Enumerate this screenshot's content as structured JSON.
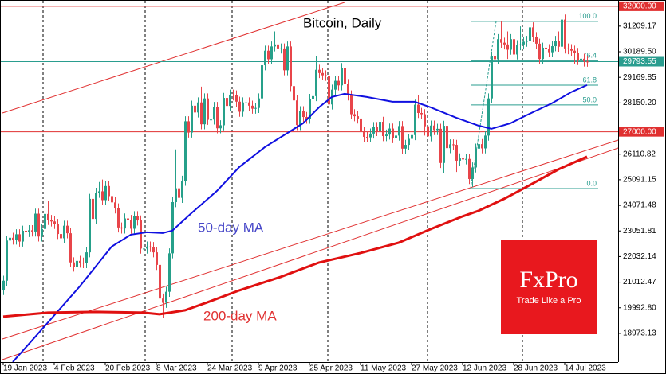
{
  "chart_data": {
    "type": "candlestick",
    "title": "Bitcoin, Daily",
    "x": [
      "2023-01-19",
      "2023-01-20",
      "2023-01-21",
      "2023-01-22",
      "2023-01-23",
      "2023-01-24",
      "2023-01-25",
      "2023-01-26",
      "2023-01-27",
      "2023-01-28",
      "2023-01-29",
      "2023-01-30",
      "2023-01-31",
      "2023-02-01",
      "2023-02-02",
      "2023-02-03",
      "2023-02-04",
      "2023-02-05",
      "2023-02-06",
      "2023-02-07",
      "2023-02-08",
      "2023-02-09",
      "2023-02-10",
      "2023-02-11",
      "2023-02-12",
      "2023-02-13",
      "2023-02-14",
      "2023-02-15",
      "2023-02-16",
      "2023-02-17",
      "2023-02-18",
      "2023-02-19",
      "2023-02-20",
      "2023-02-21",
      "2023-02-22",
      "2023-02-23",
      "2023-02-24",
      "2023-02-25",
      "2023-02-26",
      "2023-02-27",
      "2023-02-28",
      "2023-03-01",
      "2023-03-02",
      "2023-03-03",
      "2023-03-04",
      "2023-03-05",
      "2023-03-06",
      "2023-03-07",
      "2023-03-08",
      "2023-03-09",
      "2023-03-10",
      "2023-03-11",
      "2023-03-12",
      "2023-03-13",
      "2023-03-14",
      "2023-03-15",
      "2023-03-16",
      "2023-03-17",
      "2023-03-18",
      "2023-03-19",
      "2023-03-20",
      "2023-03-21",
      "2023-03-22",
      "2023-03-23",
      "2023-03-24",
      "2023-03-25",
      "2023-03-26",
      "2023-03-27",
      "2023-03-28",
      "2023-03-29",
      "2023-03-30",
      "2023-03-31",
      "2023-04-01",
      "2023-04-02",
      "2023-04-03",
      "2023-04-04",
      "2023-04-05",
      "2023-04-06",
      "2023-04-07",
      "2023-04-08",
      "2023-04-09",
      "2023-04-10",
      "2023-04-11",
      "2023-04-12",
      "2023-04-13",
      "2023-04-14",
      "2023-04-15",
      "2023-04-16",
      "2023-04-17",
      "2023-04-18",
      "2023-04-19",
      "2023-04-20",
      "2023-04-21",
      "2023-04-22",
      "2023-04-23",
      "2023-04-24",
      "2023-04-25",
      "2023-04-26",
      "2023-04-27",
      "2023-04-28",
      "2023-04-29",
      "2023-04-30",
      "2023-05-01",
      "2023-05-02",
      "2023-05-03",
      "2023-05-04",
      "2023-05-05",
      "2023-05-06",
      "2023-05-07",
      "2023-05-08",
      "2023-05-09",
      "2023-05-10",
      "2023-05-11",
      "2023-05-12",
      "2023-05-13",
      "2023-05-14",
      "2023-05-15",
      "2023-05-16",
      "2023-05-17",
      "2023-05-18",
      "2023-05-19",
      "2023-05-20",
      "2023-05-21",
      "2023-05-22",
      "2023-05-23",
      "2023-05-24",
      "2023-05-25",
      "2023-05-26",
      "2023-05-27",
      "2023-05-28",
      "2023-05-29",
      "2023-05-30",
      "2023-05-31",
      "2023-06-01",
      "2023-06-02",
      "2023-06-03",
      "2023-06-04",
      "2023-06-05",
      "2023-06-06",
      "2023-06-07",
      "2023-06-08",
      "2023-06-09",
      "2023-06-10",
      "2023-06-11",
      "2023-06-12",
      "2023-06-13",
      "2023-06-14",
      "2023-06-15",
      "2023-06-16",
      "2023-06-17",
      "2023-06-18",
      "2023-06-19",
      "2023-06-20",
      "2023-06-21",
      "2023-06-22",
      "2023-06-23",
      "2023-06-24",
      "2023-06-25",
      "2023-06-26",
      "2023-06-27",
      "2023-06-28",
      "2023-06-29",
      "2023-06-30",
      "2023-07-01",
      "2023-07-02",
      "2023-07-03",
      "2023-07-04",
      "2023-07-05",
      "2023-07-06",
      "2023-07-07",
      "2023-07-08",
      "2023-07-09",
      "2023-07-10",
      "2023-07-11",
      "2023-07-12",
      "2023-07-13",
      "2023-07-14",
      "2023-07-15",
      "2023-07-16",
      "2023-07-17",
      "2023-07-18",
      "2023-07-19",
      "2023-07-20",
      "2023-07-21"
    ],
    "open": [
      20700,
      21070,
      22670,
      22780,
      22710,
      22920,
      22630,
      23060,
      23010,
      23080,
      23030,
      23740,
      22830,
      23130,
      23730,
      23490,
      23430,
      23330,
      22930,
      22760,
      23260,
      22960,
      21800,
      21630,
      21860,
      21790,
      21770,
      22200,
      24330,
      23530,
      24570,
      24630,
      24280,
      24840,
      24440,
      24190,
      23950,
      23190,
      23150,
      23550,
      23490,
      23140,
      23640,
      23470,
      22350,
      22350,
      22430,
      22410,
      22200,
      21700,
      20360,
      20190,
      20630,
      22160,
      24200,
      24750,
      24370,
      25050,
      27420,
      26970,
      28040,
      27770,
      28170,
      27300,
      28330,
      27480,
      27490,
      27990,
      27140,
      27260,
      28350,
      28030,
      28480,
      28450,
      28200,
      27800,
      28170,
      28170,
      28040,
      27920,
      27950,
      28330,
      29650,
      30230,
      29890,
      30400,
      30480,
      30320,
      30320,
      29450,
      30400,
      28820,
      28250,
      27270,
      27820,
      27590,
      27520,
      28310,
      28420,
      29470,
      29340,
      29250,
      29230,
      28090,
      28680,
      29030,
      28850,
      29540,
      28900,
      28450,
      27700,
      27620,
      27530,
      26990,
      26800,
      26780,
      26930,
      27190,
      27030,
      27400,
      26830,
      26890,
      27130,
      26750,
      26850,
      27230,
      26330,
      26480,
      26720,
      26870,
      28080,
      27750,
      27700,
      27220,
      26820,
      27250,
      27070,
      27120,
      25760,
      27240,
      26350,
      26500,
      26480,
      25850,
      25940,
      25900,
      25920,
      25120,
      25580,
      26330,
      26510,
      26340,
      26850,
      28330,
      30000,
      29890,
      30690,
      30550,
      30480,
      30270,
      30690,
      30080,
      30450,
      30480,
      30590,
      30620,
      31160,
      30770,
      30510,
      29900,
      30350,
      30290,
      30170,
      30410,
      30620,
      30390,
      31470,
      30320,
      30290,
      30230,
      30140,
      29860,
      29910,
      29800
    ],
    "high": [
      21270,
      22870,
      22980,
      22980,
      23120,
      23120,
      23260,
      23260,
      23280,
      23280,
      23940,
      23940,
      23330,
      23930,
      24230,
      23690,
      23630,
      23530,
      23130,
      23460,
      23460,
      23160,
      22000,
      22060,
      22060,
      21990,
      22400,
      24530,
      25250,
      24770,
      25000,
      25100,
      25040,
      25040,
      25200,
      24390,
      24150,
      23390,
      23750,
      23750,
      23690,
      23840,
      23840,
      23670,
      22550,
      22630,
      22630,
      22610,
      22400,
      21900,
      20560,
      20830,
      22360,
      24400,
      26300,
      24950,
      25250,
      27620,
      27620,
      28240,
      28470,
      28370,
      28800,
      28530,
      28530,
      27690,
      28190,
      28190,
      27460,
      28550,
      28550,
      28680,
      28680,
      28650,
      28400,
      28370,
      28370,
      28370,
      28240,
      28150,
      28530,
      29850,
      30430,
      30430,
      30600,
      31000,
      30680,
      30520,
      30520,
      30600,
      30600,
      29020,
      28450,
      28020,
      28020,
      27790,
      28510,
      28620,
      30000,
      29670,
      29540,
      29450,
      29430,
      28880,
      29230,
      29230,
      29740,
      29740,
      29100,
      28650,
      27900,
      27820,
      27730,
      27190,
      27000,
      27130,
      27390,
      27390,
      27600,
      27600,
      27090,
      27330,
      27330,
      27050,
      27430,
      27430,
      26680,
      26920,
      27070,
      28280,
      28450,
      27950,
      27900,
      27420,
      27450,
      27450,
      27320,
      27320,
      27440,
      27440,
      26700,
      26700,
      26680,
      26140,
      26140,
      26120,
      26120,
      25780,
      26530,
      26710,
      26710,
      27050,
      28530,
      30200,
      30800,
      30890,
      31400,
      30750,
      31000,
      30890,
      30890,
      30650,
      31200,
      30790,
      30820,
      31360,
      31360,
      30970,
      30710,
      30550,
      30550,
      30490,
      30610,
      30820,
      31000,
      31800,
      31670,
      30520,
      30490,
      30430,
      30340,
      30110,
      30110,
      30000
    ],
    "low": [
      20500,
      20870,
      22470,
      22510,
      22510,
      22430,
      22430,
      22810,
      22810,
      22830,
      22830,
      22630,
      22630,
      22930,
      23290,
      23230,
      23130,
      22730,
      22560,
      22560,
      22760,
      21600,
      21430,
      21430,
      21590,
      21570,
      21570,
      22000,
      23330,
      23330,
      24370,
      24080,
      24080,
      24240,
      23990,
      23750,
      22990,
      22950,
      22950,
      23290,
      22940,
      22940,
      23270,
      22150,
      22150,
      22150,
      22210,
      22000,
      21500,
      20160,
      19600,
      19990,
      20430,
      21960,
      24000,
      24170,
      24170,
      24850,
      26770,
      26770,
      27570,
      27570,
      27100,
      27100,
      27280,
      27280,
      27290,
      26940,
      26940,
      27060,
      27830,
      27830,
      28250,
      28000,
      27600,
      27600,
      27970,
      27840,
      27720,
      27720,
      27750,
      28130,
      29450,
      29690,
      29690,
      30200,
      30120,
      30120,
      29250,
      29250,
      28620,
      28050,
      27070,
      27070,
      27390,
      27320,
      27320,
      27200,
      28220,
      29140,
      29050,
      29030,
      27890,
      27890,
      28480,
      28650,
      28650,
      28700,
      28250,
      27500,
      27420,
      27330,
      26790,
      26600,
      26580,
      26580,
      26730,
      26830,
      26830,
      26630,
      26630,
      26690,
      26550,
      26550,
      26650,
      26130,
      26130,
      26280,
      26520,
      26670,
      27550,
      27500,
      26850,
      26620,
      26620,
      26870,
      26870,
      25560,
      25360,
      26150,
      26150,
      26280,
      25400,
      25650,
      25700,
      25700,
      24920,
      24800,
      25380,
      26130,
      26140,
      26140,
      26650,
      28130,
      29690,
      29690,
      30350,
      30280,
      29900,
      30070,
      29880,
      29880,
      30250,
      30280,
      30390,
      30420,
      30570,
      30310,
      29700,
      29700,
      30090,
      29970,
      29970,
      30210,
      30190,
      30190,
      30120,
      30090,
      30030,
      29700,
      29660,
      29660,
      29600,
      29590
    ],
    "close": [
      21070,
      22670,
      22780,
      22710,
      22920,
      22630,
      23060,
      23010,
      23080,
      23030,
      23740,
      22830,
      23130,
      23730,
      23490,
      23430,
      23330,
      22930,
      22760,
      23260,
      22960,
      21800,
      21630,
      21860,
      21790,
      21770,
      22200,
      24330,
      23530,
      24570,
      24630,
      24280,
      24840,
      24440,
      24190,
      23950,
      23190,
      23150,
      23550,
      23490,
      23140,
      23640,
      23470,
      22350,
      22350,
      22430,
      22410,
      22200,
      21700,
      20360,
      20190,
      20630,
      22160,
      24200,
      24750,
      24370,
      25050,
      27420,
      26970,
      28040,
      27770,
      28170,
      27300,
      28330,
      27480,
      27490,
      27990,
      27140,
      27260,
      28350,
      28030,
      28480,
      28450,
      28200,
      27800,
      28170,
      28170,
      28040,
      27920,
      27950,
      28330,
      29650,
      30230,
      29890,
      30400,
      30480,
      30320,
      30320,
      29450,
      30400,
      28820,
      28250,
      27270,
      27820,
      27590,
      27520,
      28310,
      28420,
      29470,
      29340,
      29250,
      29230,
      28090,
      28680,
      29030,
      28850,
      29540,
      28900,
      28450,
      27700,
      27620,
      27530,
      26990,
      26800,
      26780,
      26930,
      27190,
      27030,
      27400,
      26830,
      26890,
      27130,
      26750,
      26850,
      27230,
      26330,
      26480,
      26720,
      26870,
      28080,
      27750,
      27700,
      27220,
      26820,
      27250,
      27070,
      27120,
      25760,
      27240,
      26350,
      26500,
      26480,
      25850,
      25940,
      25900,
      25920,
      25120,
      25580,
      26330,
      26510,
      26340,
      26850,
      28330,
      30000,
      29890,
      30690,
      30550,
      30480,
      30270,
      30690,
      30080,
      30450,
      30480,
      30590,
      30620,
      31160,
      30770,
      30510,
      29900,
      30350,
      30290,
      30170,
      30410,
      30620,
      30390,
      31470,
      30320,
      30290,
      30230,
      30140,
      29860,
      29910,
      29800,
      29790
    ],
    "up_color": "#26a08a",
    "down_color": "#e8454a",
    "series": [
      {
        "name": "50-day MA",
        "color": "#1010e0",
        "x": [
          "2023-01-22",
          "2023-02-01",
          "2023-02-12",
          "2023-02-22",
          "2023-02-28",
          "2023-03-05",
          "2023-03-10",
          "2023-03-13",
          "2023-03-19",
          "2023-03-27",
          "2023-04-03",
          "2023-04-11",
          "2023-04-17",
          "2023-04-23",
          "2023-04-28",
          "2023-05-02",
          "2023-05-06",
          "2023-05-13",
          "2023-05-21",
          "2023-05-28",
          "2023-06-02",
          "2023-06-10",
          "2023-06-17",
          "2023-06-21",
          "2023-06-27",
          "2023-07-02",
          "2023-07-10",
          "2023-07-16",
          "2023-07-21"
        ],
        "values": [
          17833,
          19260,
          20844,
          22429,
          22905,
          23000,
          22968,
          23063,
          23760,
          24648,
          25599,
          26391,
          26867,
          27342,
          27976,
          28388,
          28515,
          28388,
          28198,
          28198,
          27976,
          27564,
          27247,
          27120,
          27342,
          27659,
          28135,
          28578,
          28863
        ]
      },
      {
        "name": "200-day MA",
        "color": "#e01010",
        "x": [
          "2023-01-19",
          "2023-02-02",
          "2023-02-17",
          "2023-03-04",
          "2023-03-09",
          "2023-03-17",
          "2023-03-24",
          "2023-04-03",
          "2023-04-16",
          "2023-04-28",
          "2023-05-11",
          "2023-05-23",
          "2023-06-02",
          "2023-06-12",
          "2023-06-17",
          "2023-06-25",
          "2023-07-02",
          "2023-07-12",
          "2023-07-21"
        ],
        "values": [
          19640,
          19798,
          19830,
          19798,
          19735,
          19893,
          20210,
          20686,
          21225,
          21795,
          22176,
          22588,
          23127,
          23634,
          23856,
          24331,
          24806,
          25504,
          26011
        ]
      }
    ],
    "levels": [
      {
        "value": 32000,
        "label": "32000.00",
        "color": "#e03030"
      },
      {
        "value": 27000,
        "label": "27000.00",
        "color": "#e03030"
      }
    ],
    "last_price": 29793.55,
    "last_price_color": "#2a9d8f",
    "fib_color": "#2a9d8f",
    "fib": [
      {
        "value": 31400,
        "label": "100.0"
      },
      {
        "value": 29830,
        "label": "76.4"
      },
      {
        "value": 28860,
        "label": "61.8"
      },
      {
        "value": 28070,
        "label": "50.0"
      },
      {
        "value": 24740,
        "label": "0.0"
      }
    ],
    "ylim": [
      17830,
      32250
    ],
    "yticks": [
      31209.17,
      {
        "value": 30189.5,
        "label": "30189.50"
      },
      29169.85,
      {
        "value": 28150.2,
        "label": "28150.20"
      },
      26110.82,
      25091.15,
      24071.48,
      23051.81,
      22032.14,
      21012.47,
      {
        "value": 19992.8,
        "label": "19992.80"
      },
      18973.13
    ],
    "xticks": [
      {
        "value": "2023-01-19",
        "label": "19 Jan 2023"
      },
      {
        "value": "2023-02-04",
        "label": "4 Feb 2023"
      },
      {
        "value": "2023-02-20",
        "label": "20 Feb 2023"
      },
      {
        "value": "2023-03-08",
        "label": "8 Mar 2023"
      },
      {
        "value": "2023-03-24",
        "label": "24 Mar 2023"
      },
      {
        "value": "2023-04-09",
        "label": "9 Apr 2023"
      },
      {
        "value": "2023-04-25",
        "label": "25 Apr 2023"
      },
      {
        "value": "2023-05-11",
        "label": "11 May 2023"
      },
      {
        "value": "2023-05-27",
        "label": "27 May 2023"
      },
      {
        "value": "2023-06-12",
        "label": "12 Jun 2023"
      },
      {
        "value": "2023-06-28",
        "label": "28 Jun 2023"
      },
      {
        "value": "2023-07-14",
        "label": "14 Jul 2023"
      }
    ],
    "logo": {
      "brand": "FxPro",
      "tagline": "Trade Like a Pro"
    }
  }
}
